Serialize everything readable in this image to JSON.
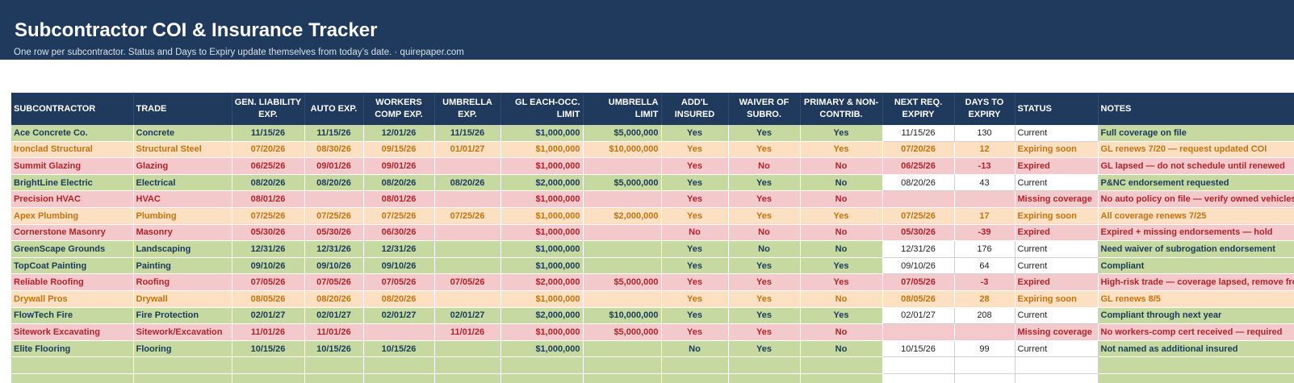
{
  "header": {
    "title": "Subcontractor COI & Insurance Tracker",
    "subtitle": "One row per subcontractor. Status and Days to Expiry update themselves from today’s date.  · quirepaper.com"
  },
  "columns": [
    "SUBCONTRACTOR",
    "TRADE",
    "GEN. LIABILITY EXP.",
    "AUTO EXP.",
    "WORKERS COMP EXP.",
    "UMBRELLA EXP.",
    "GL EACH-OCC. LIMIT",
    "UMBRELLA LIMIT",
    "ADD'L INSURED",
    "WAIVER OF SUBRO.",
    "PRIMARY & NON-CONTRIB.",
    "NEXT REQ. EXPIRY",
    "DAYS TO EXPIRY",
    "STATUS",
    "NOTES"
  ],
  "rows": [
    {
      "kind": "current",
      "cells": [
        "Ace Concrete Co.",
        "Concrete",
        "11/15/26",
        "11/15/26",
        "12/01/26",
        "11/15/26",
        "$1,000,000",
        "$5,000,000",
        "Yes",
        "Yes",
        "Yes",
        "11/15/26",
        "130",
        "Current",
        "Full coverage on file"
      ]
    },
    {
      "kind": "soon",
      "cells": [
        "Ironclad Structural",
        "Structural Steel",
        "07/20/26",
        "08/30/26",
        "09/15/26",
        "01/01/27",
        "$1,000,000",
        "$10,000,000",
        "Yes",
        "Yes",
        "Yes",
        "07/20/26",
        "12",
        "Expiring soon",
        "GL renews 7/20 — request updated COI"
      ]
    },
    {
      "kind": "expired",
      "cells": [
        "Summit Glazing",
        "Glazing",
        "06/25/26",
        "09/01/26",
        "09/01/26",
        "",
        "$1,000,000",
        "",
        "Yes",
        "No",
        "No",
        "06/25/26",
        "-13",
        "Expired",
        "GL lapsed — do not schedule until renewed"
      ]
    },
    {
      "kind": "current",
      "cells": [
        "BrightLine Electric",
        "Electrical",
        "08/20/26",
        "08/20/26",
        "08/20/26",
        "08/20/26",
        "$2,000,000",
        "$5,000,000",
        "Yes",
        "Yes",
        "No",
        "08/20/26",
        "43",
        "Current",
        "P&NC endorsement requested"
      ]
    },
    {
      "kind": "missing",
      "cells": [
        "Precision HVAC",
        "HVAC",
        "08/01/26",
        "",
        "08/01/26",
        "",
        "$1,000,000",
        "",
        "Yes",
        "Yes",
        "No",
        "",
        "",
        "Missing coverage",
        "No auto policy on file — verify owned vehicles"
      ]
    },
    {
      "kind": "soon",
      "cells": [
        "Apex Plumbing",
        "Plumbing",
        "07/25/26",
        "07/25/26",
        "07/25/26",
        "07/25/26",
        "$1,000,000",
        "$2,000,000",
        "Yes",
        "Yes",
        "Yes",
        "07/25/26",
        "17",
        "Expiring soon",
        "All coverage renews 7/25"
      ]
    },
    {
      "kind": "expired",
      "cells": [
        "Cornerstone Masonry",
        "Masonry",
        "05/30/26",
        "05/30/26",
        "06/30/26",
        "",
        "$1,000,000",
        "",
        "No",
        "No",
        "No",
        "05/30/26",
        "-39",
        "Expired",
        "Expired + missing endorsements — hold"
      ]
    },
    {
      "kind": "current",
      "cells": [
        "GreenScape Grounds",
        "Landscaping",
        "12/31/26",
        "12/31/26",
        "12/31/26",
        "",
        "$1,000,000",
        "",
        "Yes",
        "No",
        "No",
        "12/31/26",
        "176",
        "Current",
        "Need waiver of subrogation endorsement"
      ]
    },
    {
      "kind": "current",
      "cells": [
        "TopCoat Painting",
        "Painting",
        "09/10/26",
        "09/10/26",
        "09/10/26",
        "",
        "$1,000,000",
        "",
        "Yes",
        "Yes",
        "Yes",
        "09/10/26",
        "64",
        "Current",
        "Compliant"
      ]
    },
    {
      "kind": "expired",
      "cells": [
        "Reliable Roofing",
        "Roofing",
        "07/05/26",
        "07/05/26",
        "07/05/26",
        "07/05/26",
        "$2,000,000",
        "$5,000,000",
        "Yes",
        "Yes",
        "Yes",
        "07/05/26",
        "-3",
        "Expired",
        "High-risk trade — coverage lapsed, remove from site"
      ]
    },
    {
      "kind": "soon",
      "cells": [
        "Drywall Pros",
        "Drywall",
        "08/05/26",
        "08/20/26",
        "08/20/26",
        "",
        "$1,000,000",
        "",
        "Yes",
        "Yes",
        "No",
        "08/05/26",
        "28",
        "Expiring soon",
        "GL renews 8/5"
      ]
    },
    {
      "kind": "current",
      "cells": [
        "FlowTech Fire",
        "Fire Protection",
        "02/01/27",
        "02/01/27",
        "02/01/27",
        "02/01/27",
        "$2,000,000",
        "$10,000,000",
        "Yes",
        "Yes",
        "Yes",
        "02/01/27",
        "208",
        "Current",
        "Compliant through next year"
      ]
    },
    {
      "kind": "missing",
      "cells": [
        "Sitework Excavating",
        "Sitework/Excavation",
        "11/01/26",
        "11/01/26",
        "",
        "11/01/26",
        "$1,000,000",
        "$5,000,000",
        "Yes",
        "Yes",
        "No",
        "",
        "",
        "Missing coverage",
        "No workers-comp cert received — required"
      ]
    },
    {
      "kind": "current",
      "cells": [
        "Elite Flooring",
        "Flooring",
        "10/15/26",
        "10/15/26",
        "10/15/26",
        "",
        "$1,000,000",
        "",
        "No",
        "Yes",
        "No",
        "10/15/26",
        "99",
        "Current",
        "Not named as additional insured"
      ]
    }
  ]
}
